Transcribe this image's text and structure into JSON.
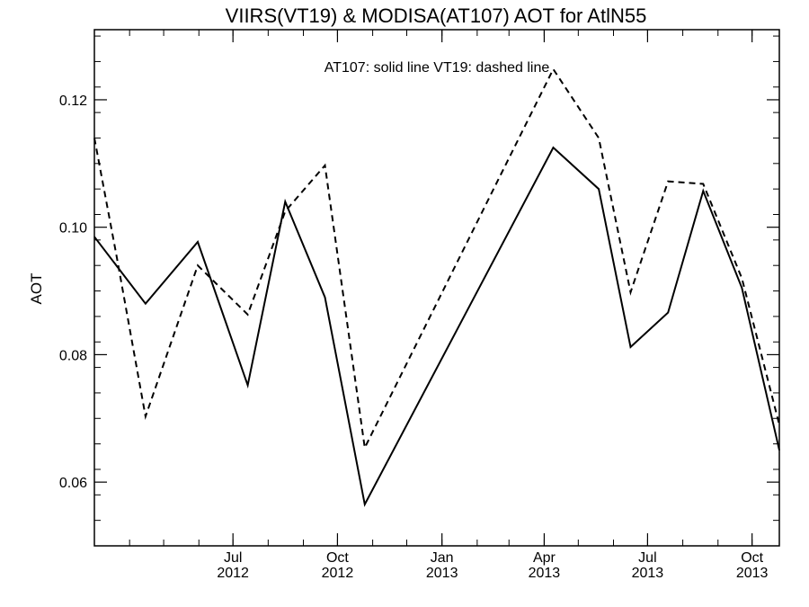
{
  "chart_data": {
    "type": "line",
    "title": "VIIRS(VT19) & MODISA(AT107)  AOT for AtlN55",
    "annotation": "AT107: solid line   VT19: dashed line",
    "xlabel": "",
    "ylabel": "AOT",
    "xlim": [
      "2012-03-01",
      "2013-10-25"
    ],
    "ylim": [
      0.05,
      0.131
    ],
    "yticks": [
      0.06,
      0.08,
      0.1,
      0.12
    ],
    "ytick_labels": [
      "0.06",
      "0.08",
      "0.10",
      "0.12"
    ],
    "xticks": [
      {
        "date": "2012-07-01",
        "month": "Jul",
        "year": "2012"
      },
      {
        "date": "2012-10-01",
        "month": "Oct",
        "year": "2012"
      },
      {
        "date": "2013-01-01",
        "month": "Jan",
        "year": "2013"
      },
      {
        "date": "2013-04-01",
        "month": "Apr",
        "year": "2013"
      },
      {
        "date": "2013-07-01",
        "month": "Jul",
        "year": "2013"
      },
      {
        "date": "2013-10-01",
        "month": "Oct",
        "year": "2013"
      }
    ],
    "grid": false,
    "series": [
      {
        "name": "AT107",
        "style": "solid",
        "color": "#000000",
        "points": [
          [
            "2012-03-01",
            0.0985
          ],
          [
            "2012-04-15",
            0.088
          ],
          [
            "2012-05-31",
            0.0977
          ],
          [
            "2012-07-14",
            0.0752
          ],
          [
            "2012-08-16",
            0.104
          ],
          [
            "2012-09-20",
            0.089
          ],
          [
            "2012-10-25",
            0.0565
          ],
          [
            "2013-04-09",
            0.1125
          ],
          [
            "2013-05-19",
            0.106
          ],
          [
            "2013-06-16",
            0.0812
          ],
          [
            "2013-07-19",
            0.0866
          ],
          [
            "2013-08-19",
            0.1057
          ],
          [
            "2013-09-22",
            0.0905
          ],
          [
            "2013-10-25",
            0.065
          ]
        ]
      },
      {
        "name": "VT19",
        "style": "dashed",
        "color": "#000000",
        "points": [
          [
            "2012-03-01",
            0.114
          ],
          [
            "2012-03-20",
            0.096
          ],
          [
            "2012-04-15",
            0.0703
          ],
          [
            "2012-05-31",
            0.094
          ],
          [
            "2012-07-14",
            0.0863
          ],
          [
            "2012-08-16",
            0.1025
          ],
          [
            "2012-09-20",
            0.1097
          ],
          [
            "2012-10-25",
            0.0654
          ],
          [
            "2013-04-09",
            0.1248
          ],
          [
            "2013-05-19",
            0.114
          ],
          [
            "2013-06-16",
            0.0898
          ],
          [
            "2013-07-19",
            0.1072
          ],
          [
            "2013-08-19",
            0.1068
          ],
          [
            "2013-09-22",
            0.092
          ],
          [
            "2013-10-25",
            0.069
          ]
        ]
      }
    ]
  }
}
